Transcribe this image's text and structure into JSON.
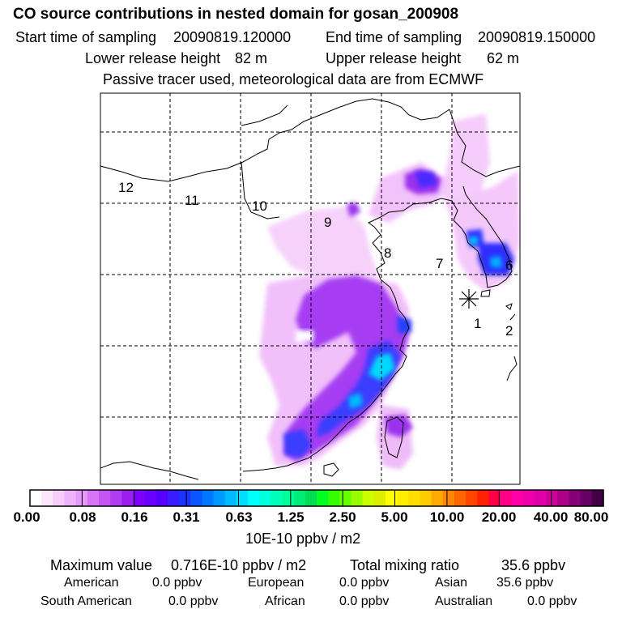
{
  "header": {
    "title": "CO  source contributions in nested domain for gosan_200908",
    "start_label": "Start time of sampling",
    "start_value": "20090819.120000",
    "end_label": "End time of sampling",
    "end_value": "20090819.150000",
    "lower_label": "Lower release height",
    "lower_value": "82 m",
    "upper_label": "Upper release height",
    "upper_value": "62 m",
    "note": "Passive tracer used, meteorological data are from ECMWF"
  },
  "map": {
    "region_numbers": [
      "1",
      "2",
      "6",
      "7",
      "8",
      "9",
      "10",
      "11",
      "12"
    ],
    "receptor_marker": "asterisk-receptor",
    "colors": {
      "coast": "#000000",
      "grid": "#000000"
    }
  },
  "colorbar": {
    "labels": [
      "0.00",
      "0.08",
      "0.16",
      "0.31",
      "0.63",
      "1.25",
      "2.50",
      "5.00",
      "10.00",
      "20.00",
      "40.00",
      "80.00"
    ],
    "unit": "10E-10 ppbv / m2",
    "colors": [
      "#ffffff",
      "#fbe6fc",
      "#f6ccfb",
      "#eeb3fa",
      "#e699f8",
      "#d774f6",
      "#c555f3",
      "#b13df0",
      "#9b1eef",
      "#8000ff",
      "#6a00ff",
      "#5500ff",
      "#3a1cff",
      "#1a33ff",
      "#0a55ff",
      "#0077ff",
      "#0099ff",
      "#00bbff",
      "#00ddff",
      "#00ffff",
      "#00ffdd",
      "#00ffbb",
      "#00ff99",
      "#00ee77",
      "#00dd55",
      "#00ff22",
      "#33ff00",
      "#66ff00",
      "#99ff00",
      "#ccff00",
      "#ddee00",
      "#ffff00",
      "#ffee00",
      "#ffdd00",
      "#ffcc00",
      "#ffaa00",
      "#ff8800",
      "#ff6600",
      "#ff4400",
      "#ff2200",
      "#ff0044",
      "#ff0088",
      "#ff00aa",
      "#ee00aa",
      "#dd00aa",
      "#cc0099",
      "#aa0088",
      "#880077",
      "#660066",
      "#440044"
    ]
  },
  "summary": {
    "max_label": "Maximum value",
    "max_value": "0.716E-10 ppbv / m2",
    "total_label": "Total mixing ratio",
    "total_value": "35.6 ppbv",
    "rows": [
      [
        {
          "label": "American",
          "value": "0.0 ppbv"
        },
        {
          "label": "European",
          "value": "0.0 ppbv"
        },
        {
          "label": "Asian",
          "value": "35.6 ppbv"
        }
      ],
      [
        {
          "label": "South American",
          "value": "0.0 ppbv"
        },
        {
          "label": "African",
          "value": "0.0 ppbv"
        },
        {
          "label": "Australian",
          "value": "0.0 ppbv"
        }
      ]
    ]
  }
}
